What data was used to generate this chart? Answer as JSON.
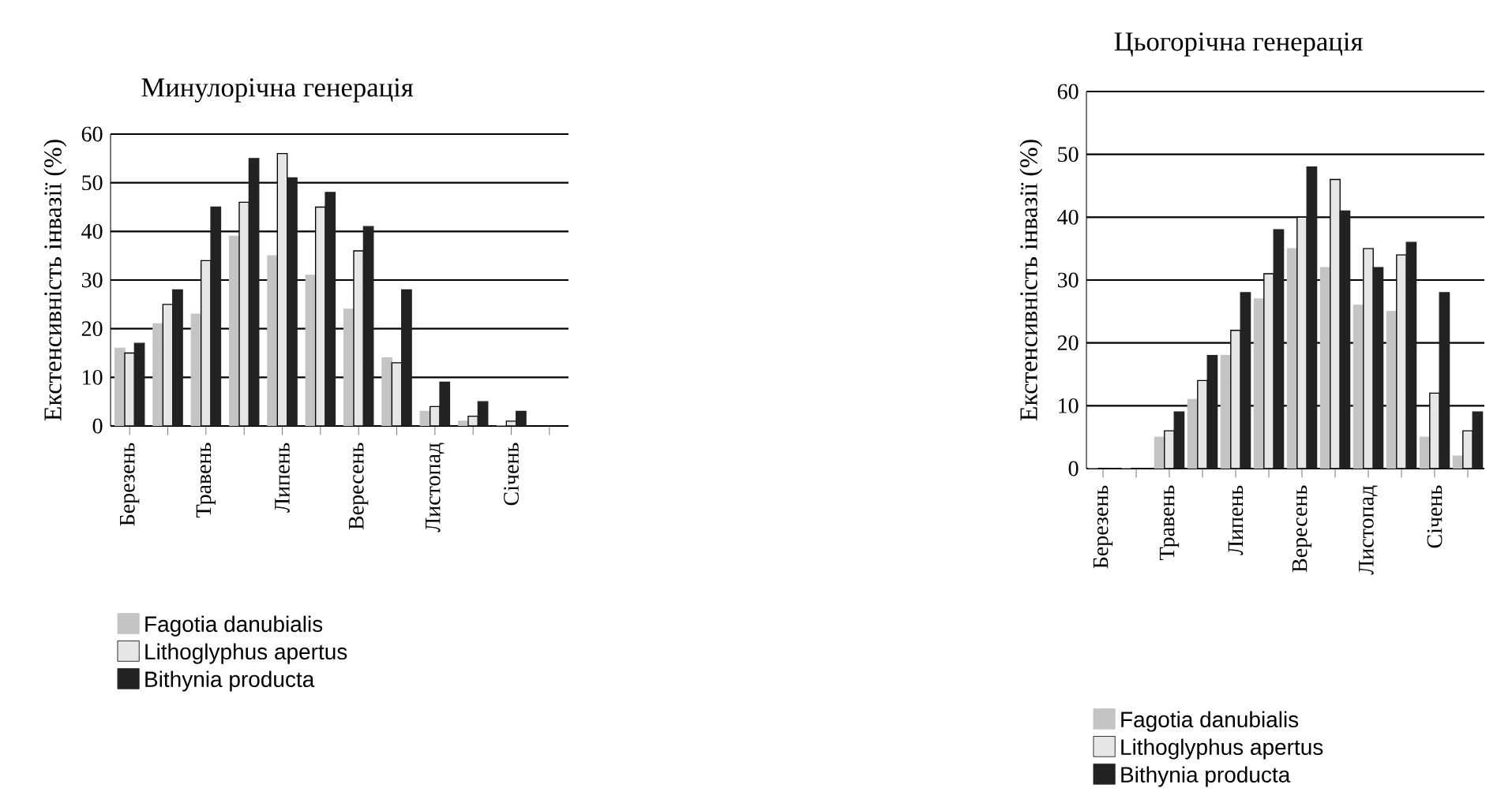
{
  "chart_data": [
    {
      "type": "bar",
      "title": "Минулорічна генерація",
      "ylabel": "Екстенсивність інвазії (%)",
      "categories": [
        "Березень",
        null,
        "Травень",
        null,
        "Липень",
        null,
        "Вересень",
        null,
        "Листопад",
        null,
        "Січень",
        null
      ],
      "series": [
        {
          "name": "Fagotia danubialis",
          "color": "#c4c4c4",
          "values": [
            16,
            21,
            23,
            39,
            35,
            31,
            24,
            14,
            3,
            1,
            0,
            null
          ]
        },
        {
          "name": "Lithoglyphus apertus",
          "color": "#e6e6e6",
          "values": [
            15,
            25,
            34,
            46,
            56,
            45,
            36,
            13,
            4,
            2,
            1,
            null
          ]
        },
        {
          "name": "Bithynia producta",
          "color": "#222222",
          "values": [
            17,
            28,
            45,
            55,
            51,
            48,
            41,
            28,
            9,
            5,
            3,
            null
          ]
        }
      ],
      "ylim": [
        0,
        60
      ],
      "yticks": [
        0,
        10,
        20,
        30,
        40,
        50,
        60
      ],
      "grid": "y",
      "legend": "bottom"
    },
    {
      "type": "bar",
      "title": "Цьогорічна генерація",
      "ylabel": "Екстенсивність інвазії (%)",
      "categories": [
        "Березень",
        null,
        "Травень",
        null,
        "Липень",
        null,
        "Вересень",
        null,
        "Листопад",
        null,
        "Січень",
        null
      ],
      "series": [
        {
          "name": "Fagotia danubialis",
          "color": "#c4c4c4",
          "values": [
            0,
            0,
            5,
            11,
            18,
            27,
            35,
            32,
            26,
            25,
            5,
            2
          ]
        },
        {
          "name": "Lithoglyphus apertus",
          "color": "#e6e6e6",
          "values": [
            0,
            0,
            6,
            14,
            22,
            31,
            40,
            46,
            35,
            34,
            12,
            6
          ]
        },
        {
          "name": "Bithynia producta",
          "color": "#222222",
          "values": [
            0,
            0,
            9,
            18,
            28,
            38,
            48,
            41,
            32,
            36,
            28,
            9
          ]
        }
      ],
      "ylim": [
        0,
        60
      ],
      "yticks": [
        0,
        10,
        20,
        30,
        40,
        50,
        60
      ],
      "grid": "y",
      "legend": "bottom"
    }
  ]
}
